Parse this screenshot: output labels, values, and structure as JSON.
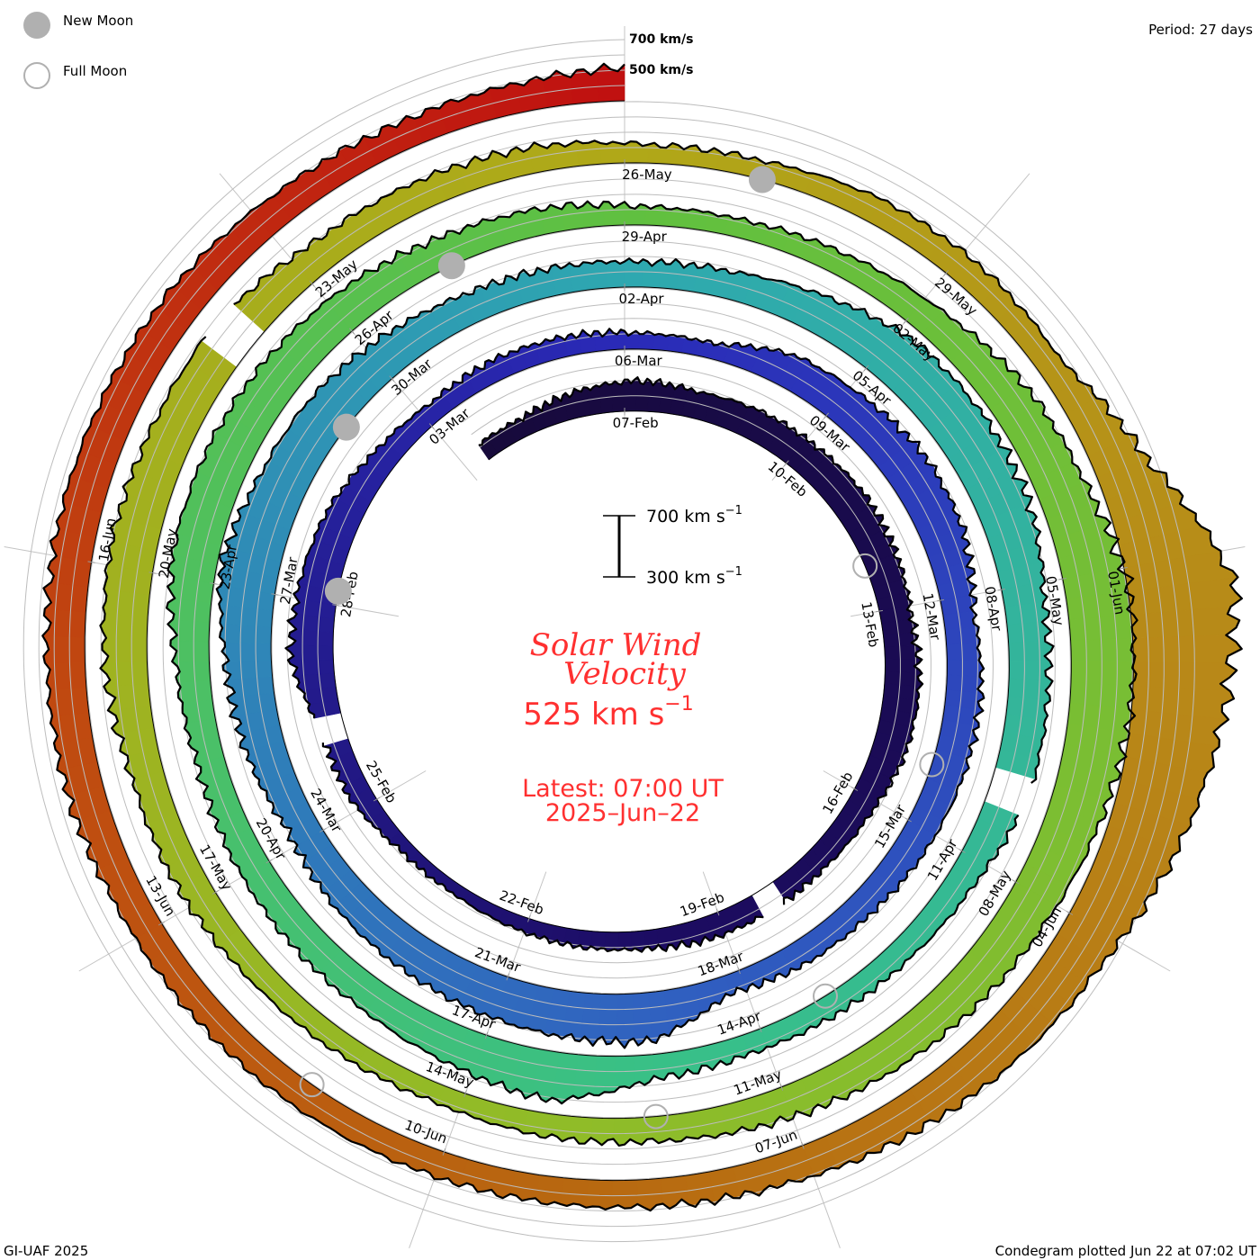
{
  "legend": {
    "new_moon": "New Moon",
    "full_moon": "Full Moon",
    "new_moon_color": "#b0b0b0"
  },
  "period": "Period: 27 days",
  "axis_labels": {
    "v700": "700 km/s",
    "v500": "500 km/s"
  },
  "scale_bar": {
    "top": "700 km s",
    "bottom": "300 km s",
    "exp": "−1",
    "top_value": 700,
    "bottom_value": 300
  },
  "center": {
    "title_line1": "Solar Wind",
    "title_line2": "Velocity",
    "current_value": "525 km s",
    "current_exp": "−1",
    "latest_line1": "Latest: 07:00 UT",
    "latest_line2": "2025–Jun–22",
    "text_color": "#ff3030"
  },
  "footer": {
    "left": "GI-UAF 2025",
    "right": "Condegram plotted Jun 22 at 07:02 UT"
  },
  "chart_data": {
    "type": "condegram-spiral",
    "title": "Solar Wind Velocity",
    "units": "km/s",
    "period_days": 27,
    "reference_time_at_top": "2025-02-07T07:00Z",
    "baseline_value": 300,
    "gridlines": [
      400,
      500,
      600,
      700
    ],
    "first_day": "2025-02-05",
    "daily_velocity": [
      420,
      470,
      500,
      475,
      500,
      510,
      530,
      520,
      500,
      530,
      520,
      470,
      450,
      null,
      450,
      420,
      410,
      390,
      370,
      380,
      450,
      null,
      580,
      560,
      530,
      460,
      420,
      440,
      430,
      405,
      400,
      520,
      550,
      590,
      580,
      500,
      530,
      520,
      500,
      470,
      460,
      420,
      620,
      600,
      580,
      560,
      540,
      500,
      560,
      600,
      680,
      620,
      600,
      550,
      500,
      480,
      465,
      480,
      550,
      640,
      650,
      640,
      560,
      560,
      null,
      480,
      450,
      440,
      430,
      460,
      620,
      560,
      520,
      510,
      500,
      480,
      520,
      600,
      600,
      580,
      550,
      500,
      470,
      420,
      420,
      450,
      500,
      580,
      620,
      720,
      700,
      650,
      600,
      570,
      540,
      500,
      460,
      450,
      420,
      440,
      460,
      500,
      510,
      580,
      600,
      580,
      null,
      500,
      490,
      470,
      420,
      420,
      470,
      480,
      460,
      650,
      1000,
      900,
      780,
      650,
      600,
      550,
      500,
      480,
      470,
      470,
      480,
      490,
      500,
      540,
      550,
      560,
      550,
      540,
      500,
      480,
      490,
      525
    ],
    "color_stops": [
      {
        "day": -3,
        "color": "#170a3a"
      },
      {
        "day": 13,
        "color": "#1c0c62"
      },
      {
        "day": 27,
        "color": "#2a2ab8"
      },
      {
        "day": 40,
        "color": "#3060c0"
      },
      {
        "day": 54,
        "color": "#2ea8b0"
      },
      {
        "day": 67,
        "color": "#38c088"
      },
      {
        "day": 81,
        "color": "#60c040"
      },
      {
        "day": 95,
        "color": "#90bc28"
      },
      {
        "day": 108,
        "color": "#b0a818"
      },
      {
        "day": 115,
        "color": "#b88818"
      },
      {
        "day": 122,
        "color": "#b86810"
      },
      {
        "day": 128,
        "color": "#c04810"
      },
      {
        "day": 135,
        "color": "#c01010"
      }
    ],
    "new_moons": [
      "2025-02-28",
      "2025-03-29",
      "2025-04-27",
      "2025-05-27"
    ],
    "full_moons": [
      "2025-02-12",
      "2025-03-14",
      "2025-04-13",
      "2025-05-12",
      "2025-06-11"
    ],
    "date_labels": [
      {
        "text": "07-Feb",
        "day": 0
      },
      {
        "text": "10-Feb",
        "day": 3
      },
      {
        "text": "13-Feb",
        "day": 6
      },
      {
        "text": "16-Feb",
        "day": 9
      },
      {
        "text": "19-Feb",
        "day": 12
      },
      {
        "text": "22-Feb",
        "day": 15
      },
      {
        "text": "25-Feb",
        "day": 18
      },
      {
        "text": "28-Feb",
        "day": 21
      },
      {
        "text": "03-Mar",
        "day": 24
      },
      {
        "text": "06-Mar",
        "day": 27
      },
      {
        "text": "09-Mar",
        "day": 30
      },
      {
        "text": "12-Mar",
        "day": 33
      },
      {
        "text": "15-Mar",
        "day": 36
      },
      {
        "text": "18-Mar",
        "day": 39
      },
      {
        "text": "21-Mar",
        "day": 42
      },
      {
        "text": "24-Mar",
        "day": 45
      },
      {
        "text": "27-Mar",
        "day": 48
      },
      {
        "text": "30-Mar",
        "day": 51
      },
      {
        "text": "02-Apr",
        "day": 54
      },
      {
        "text": "05-Apr",
        "day": 57
      },
      {
        "text": "08-Apr",
        "day": 60
      },
      {
        "text": "11-Apr",
        "day": 63
      },
      {
        "text": "14-Apr",
        "day": 66
      },
      {
        "text": "17-Apr",
        "day": 69
      },
      {
        "text": "20-Apr",
        "day": 72
      },
      {
        "text": "23-Apr",
        "day": 75
      },
      {
        "text": "26-Apr",
        "day": 78
      },
      {
        "text": "29-Apr",
        "day": 81
      },
      {
        "text": "02-May",
        "day": 84
      },
      {
        "text": "05-May",
        "day": 87
      },
      {
        "text": "08-May",
        "day": 90
      },
      {
        "text": "11-May",
        "day": 93
      },
      {
        "text": "14-May",
        "day": 96
      },
      {
        "text": "17-May",
        "day": 99
      },
      {
        "text": "20-May",
        "day": 102
      },
      {
        "text": "23-May",
        "day": 105
      },
      {
        "text": "26-May",
        "day": 108
      },
      {
        "text": "29-May",
        "day": 111
      },
      {
        "text": "01-Jun",
        "day": 114
      },
      {
        "text": "04-Jun",
        "day": 117
      },
      {
        "text": "07-Jun",
        "day": 120
      },
      {
        "text": "10-Jun",
        "day": 123
      },
      {
        "text": "13-Jun",
        "day": 126
      },
      {
        "text": "16-Jun",
        "day": 129
      }
    ],
    "data_start_day": -2.6,
    "data_end_day": 135
  }
}
